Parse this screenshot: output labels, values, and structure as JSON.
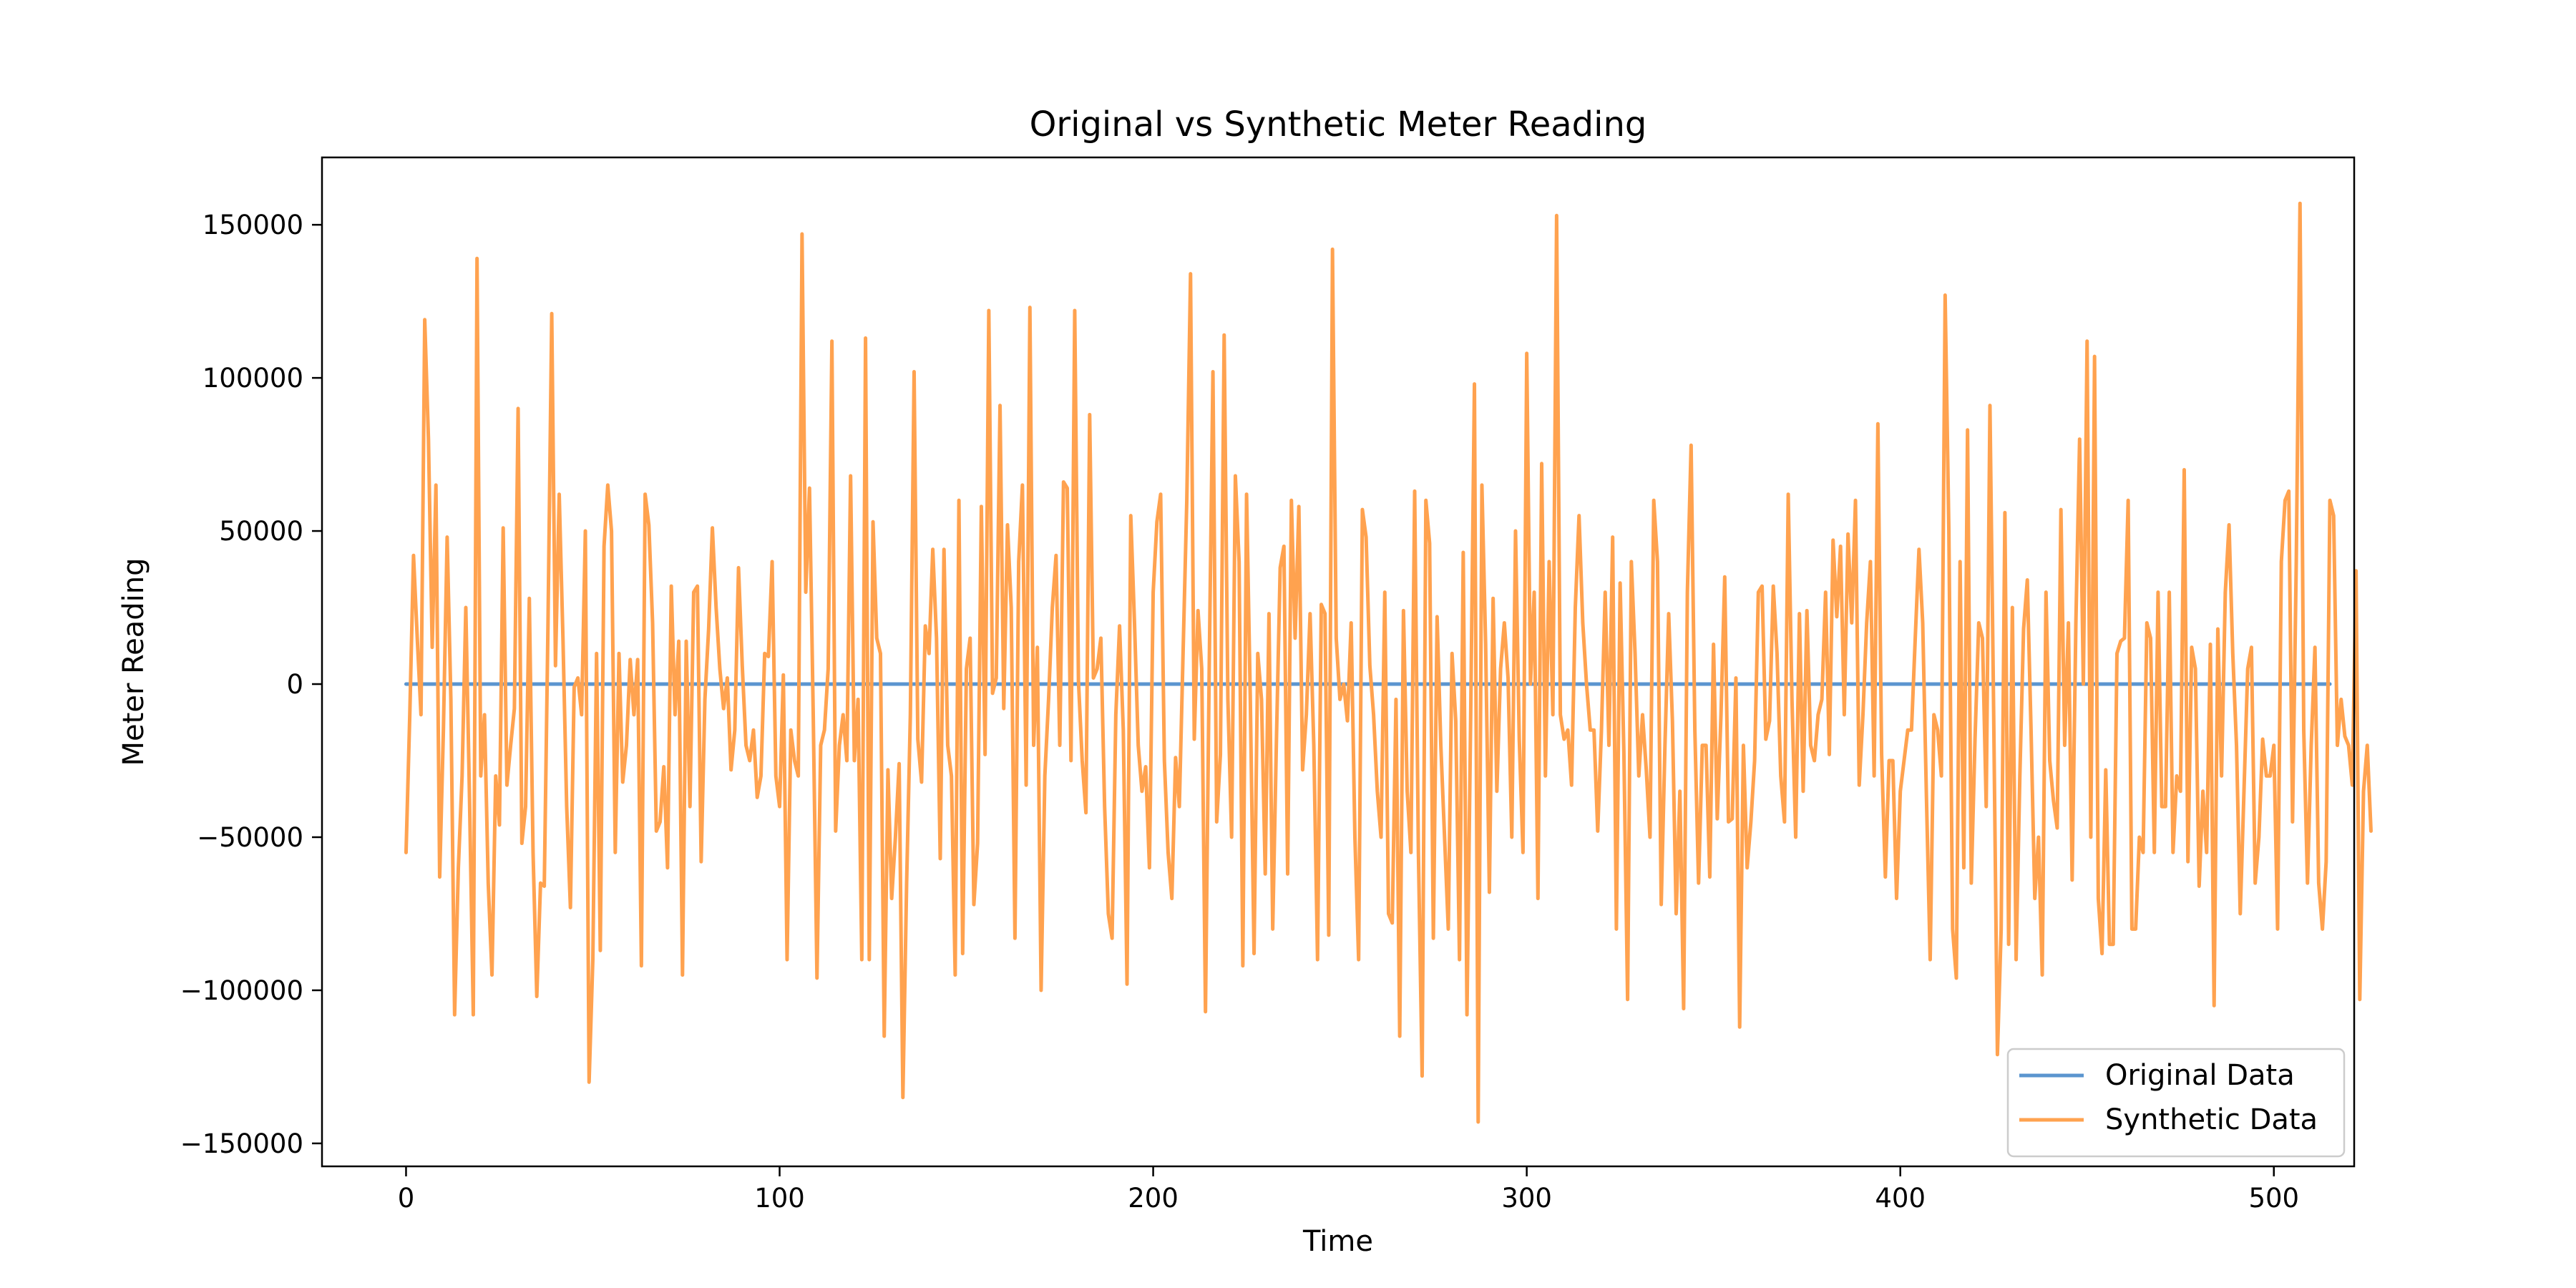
{
  "chart_data": {
    "type": "line",
    "title": "Original vs Synthetic Meter Reading",
    "xlabel": "Time",
    "ylabel": "Meter Reading",
    "xlim": [
      -22.5,
      521.5
    ],
    "ylim": [
      -157500,
      172000
    ],
    "x_ticks": [
      0,
      100,
      200,
      300,
      400,
      500
    ],
    "x_tick_labels": [
      "0",
      "100",
      "200",
      "300",
      "400",
      "500"
    ],
    "y_ticks": [
      -150000,
      -100000,
      -50000,
      0,
      50000,
      100000,
      150000
    ],
    "y_tick_labels": [
      "−150000",
      "−100000",
      "−50000",
      "0",
      "50000",
      "100000",
      "150000"
    ],
    "grid": false,
    "legend_position": "bottom-right",
    "series": [
      {
        "name": "Original Data",
        "color": "#5b95cf",
        "x_start": 0,
        "x_step": 1,
        "values": [
          0,
          0,
          0,
          0,
          0,
          0,
          0,
          0,
          0,
          0,
          0,
          0,
          0,
          0,
          0,
          0,
          0,
          0,
          0,
          0,
          0,
          0,
          0,
          0,
          0,
          0,
          0,
          0,
          0,
          0,
          0,
          0,
          0,
          0,
          0,
          0,
          0,
          0,
          0,
          0,
          0,
          0,
          0,
          0,
          0,
          0,
          0,
          0,
          0,
          0,
          0,
          0,
          0,
          0,
          0,
          0,
          0,
          0,
          0,
          0,
          0,
          0,
          0,
          0,
          0,
          0,
          0,
          0,
          0,
          0,
          0,
          0,
          0,
          0,
          0,
          0,
          0,
          0,
          0,
          0,
          0,
          0,
          0,
          0,
          0,
          0,
          0,
          0,
          0,
          0,
          0,
          0,
          0,
          0,
          0,
          0,
          0,
          0,
          0,
          0,
          0,
          0,
          0,
          0,
          0,
          0,
          0,
          0,
          0,
          0,
          0,
          0,
          0,
          0,
          0,
          0,
          0,
          0,
          0,
          0,
          0,
          0,
          0,
          0,
          0,
          0,
          0,
          0,
          0,
          0,
          0,
          0,
          0,
          0,
          0,
          0,
          0,
          0,
          0,
          0,
          0,
          0,
          0,
          0,
          0,
          0,
          0,
          0,
          0,
          0,
          0,
          0,
          0,
          0,
          0,
          0,
          0,
          0,
          0,
          0,
          0,
          0,
          0,
          0,
          0,
          0,
          0,
          0,
          0,
          0,
          0,
          0,
          0,
          0,
          0,
          0,
          0,
          0,
          0,
          0,
          0,
          0,
          0,
          0,
          0,
          0,
          0,
          0,
          0,
          0,
          0,
          0,
          0,
          0,
          0,
          0,
          0,
          0,
          0,
          0,
          0,
          0,
          0,
          0,
          0,
          0,
          0,
          0,
          0,
          0,
          0,
          0,
          0,
          0,
          0,
          0,
          0,
          0,
          0,
          0,
          0,
          0,
          0,
          0,
          0,
          0,
          0,
          0,
          0,
          0,
          0,
          0,
          0,
          0,
          0,
          0,
          0,
          0,
          0,
          0,
          0,
          0,
          0,
          0,
          0,
          0,
          0,
          0,
          0,
          0,
          0,
          0,
          0,
          0,
          0,
          0,
          0,
          0,
          0,
          0,
          0,
          0,
          0,
          0,
          0,
          0,
          0,
          0,
          0,
          0,
          0,
          0,
          0,
          0,
          0,
          0,
          0,
          0,
          0,
          0,
          0,
          0,
          0,
          0,
          0,
          0,
          0,
          0,
          0,
          0,
          0,
          0,
          0,
          0,
          0,
          0,
          0,
          0,
          0,
          0,
          0,
          0,
          0,
          0,
          0,
          0,
          0,
          0,
          0,
          0,
          0,
          0,
          0,
          0,
          0,
          0,
          0,
          0,
          0,
          0,
          0,
          0,
          0,
          0,
          0,
          0,
          0,
          0,
          0,
          0,
          0,
          0,
          0,
          0,
          0,
          0,
          0,
          0,
          0,
          0,
          0,
          0,
          0,
          0,
          0,
          0,
          0,
          0,
          0,
          0,
          0,
          0,
          0,
          0,
          0,
          0,
          0,
          0,
          0,
          0,
          0,
          0,
          0,
          0,
          0,
          0,
          0,
          0,
          0,
          0,
          0,
          0,
          0,
          0,
          0,
          0,
          0,
          0,
          0,
          0,
          0,
          0,
          0,
          0,
          0,
          0,
          0,
          0,
          0,
          0,
          0,
          0,
          0,
          0,
          0,
          0,
          0,
          0,
          0,
          0,
          0,
          0,
          0,
          0,
          0,
          0,
          0,
          0,
          0,
          0,
          0,
          0,
          0,
          0,
          0,
          0,
          0,
          0,
          0,
          0,
          0,
          0,
          0,
          0,
          0,
          0,
          0,
          0,
          0,
          0,
          0,
          0,
          0,
          0,
          0,
          0,
          0,
          0,
          0,
          0,
          0,
          0,
          0,
          0,
          0,
          0,
          0,
          0,
          0,
          0,
          0,
          0,
          0,
          0,
          0,
          0,
          0,
          0,
          0,
          0,
          0,
          0,
          0,
          0,
          0,
          0,
          0,
          0,
          0,
          0,
          0,
          0,
          0,
          0,
          0,
          0,
          0,
          0,
          0,
          0,
          0,
          0,
          0,
          0,
          0,
          0,
          0,
          0,
          0,
          0,
          0,
          0,
          0,
          0,
          0,
          0,
          0,
          0,
          0,
          0,
          0,
          0,
          0,
          0,
          0,
          0,
          0,
          0,
          0,
          0,
          0,
          0,
          0,
          0,
          0,
          0
        ]
      },
      {
        "name": "Synthetic Data",
        "color": "#ffa24f",
        "x_start": 0,
        "x_step": 1,
        "values": [
          -55000,
          -10000,
          42000,
          15000,
          -10000,
          119000,
          80000,
          12000,
          65000,
          -63000,
          -15000,
          48000,
          -5000,
          -108000,
          -60000,
          -30000,
          25000,
          -38000,
          -108000,
          139000,
          -30000,
          -10000,
          -65000,
          -95000,
          -30000,
          -46000,
          51000,
          -33000,
          -20000,
          -8000,
          90000,
          -52000,
          -40000,
          28000,
          -55000,
          -102000,
          -65000,
          -66000,
          20000,
          121000,
          6000,
          62000,
          15000,
          -40000,
          -73000,
          -1000,
          2000,
          -10000,
          50000,
          -130000,
          -90000,
          10000,
          -87000,
          45000,
          65000,
          50000,
          -55000,
          10000,
          -32000,
          -20000,
          8000,
          -10000,
          8000,
          -92000,
          62000,
          52000,
          20000,
          -48000,
          -45000,
          -27000,
          -60000,
          32000,
          -10000,
          14000,
          -95000,
          14000,
          -40000,
          30000,
          32000,
          -58000,
          -5000,
          18000,
          51000,
          25000,
          5000,
          -8000,
          2000,
          -28000,
          -15000,
          38000,
          6000,
          -20000,
          -25000,
          -15000,
          -37000,
          -30000,
          10000,
          9000,
          40000,
          -30000,
          -40000,
          3000,
          -90000,
          -15000,
          -25000,
          -30000,
          147000,
          30000,
          64000,
          -10000,
          -96000,
          -20000,
          -15000,
          5000,
          112000,
          -48000,
          -20000,
          -10000,
          -25000,
          68000,
          -25000,
          -5000,
          -90000,
          113000,
          -90000,
          53000,
          15000,
          10000,
          -115000,
          -28000,
          -70000,
          -50000,
          -26000,
          -135000,
          -65000,
          -10000,
          102000,
          -18000,
          -32000,
          19000,
          10000,
          44000,
          15000,
          -57000,
          44000,
          -20000,
          -30000,
          -95000,
          60000,
          -88000,
          5000,
          15000,
          -72000,
          -52000,
          58000,
          -23000,
          122000,
          -3000,
          2000,
          91000,
          -8000,
          52000,
          25000,
          -83000,
          40000,
          65000,
          -33000,
          123000,
          -20000,
          12000,
          -100000,
          -30000,
          -5000,
          25000,
          42000,
          -20000,
          66000,
          64000,
          -25000,
          122000,
          1000,
          -25000,
          -42000,
          88000,
          2000,
          5000,
          15000,
          -40000,
          -75000,
          -83000,
          -10000,
          19000,
          -15000,
          -98000,
          55000,
          20000,
          -20000,
          -35000,
          -27000,
          -60000,
          30000,
          53000,
          62000,
          -25000,
          -55000,
          -70000,
          -24000,
          -40000,
          10000,
          60000,
          134000,
          -18000,
          24000,
          5000,
          -107000,
          5000,
          102000,
          -45000,
          -23000,
          114000,
          -5000,
          -50000,
          68000,
          40000,
          -92000,
          62000,
          -5000,
          -88000,
          10000,
          -5000,
          -62000,
          23000,
          -80000,
          -18000,
          38000,
          45000,
          -62000,
          60000,
          15000,
          58000,
          -28000,
          -10000,
          23000,
          -20000,
          -90000,
          26000,
          23000,
          -82000,
          142000,
          15000,
          -5000,
          0,
          -12000,
          20000,
          -50000,
          -90000,
          57000,
          48000,
          6000,
          -10000,
          -35000,
          -50000,
          30000,
          -75000,
          -78000,
          -5000,
          -115000,
          24000,
          -35000,
          -55000,
          63000,
          -55000,
          -128000,
          60000,
          46000,
          -83000,
          22000,
          -20000,
          -50000,
          -80000,
          10000,
          -12000,
          -90000,
          43000,
          -108000,
          -10000,
          98000,
          -143000,
          65000,
          13000,
          -68000,
          28000,
          -35000,
          5000,
          20000,
          2000,
          -50000,
          50000,
          -18000,
          -55000,
          108000,
          0,
          30000,
          -70000,
          72000,
          -30000,
          40000,
          -10000,
          153000,
          -10000,
          -18000,
          -15000,
          -33000,
          25000,
          55000,
          20000,
          0,
          -15000,
          -15000,
          -48000,
          -15000,
          30000,
          -20000,
          48000,
          -80000,
          33000,
          -22000,
          -103000,
          40000,
          10000,
          -30000,
          -10000,
          -28000,
          -50000,
          60000,
          40000,
          -72000,
          -20000,
          23000,
          -12000,
          -75000,
          -35000,
          -106000,
          30000,
          78000,
          -15000,
          -65000,
          -20000,
          -20000,
          -63000,
          13000,
          -44000,
          -10000,
          35000,
          -45000,
          -44000,
          2000,
          -112000,
          -20000,
          -60000,
          -45000,
          -25000,
          30000,
          32000,
          -18000,
          -12000,
          32000,
          10000,
          -30000,
          -45000,
          62000,
          -5000,
          -50000,
          23000,
          -35000,
          24000,
          -20000,
          -25000,
          -10000,
          -5000,
          30000,
          -23000,
          47000,
          22000,
          45000,
          -10000,
          49000,
          20000,
          60000,
          -33000,
          -10000,
          20000,
          40000,
          -30000,
          85000,
          -23000,
          -63000,
          -25000,
          -25000,
          -70000,
          -35000,
          -25000,
          -15000,
          -15000,
          15000,
          44000,
          20000,
          -37000,
          -90000,
          -10000,
          -15000,
          -30000,
          127000,
          50000,
          -80000,
          -96000,
          40000,
          -60000,
          83000,
          -65000,
          -18000,
          20000,
          15000,
          -40000,
          91000,
          -10000,
          -121000,
          -80000,
          56000,
          -85000,
          25000,
          -90000,
          -30000,
          18000,
          34000,
          -15000,
          -70000,
          -50000,
          -95000,
          30000,
          -25000,
          -38000,
          -47000,
          57000,
          -20000,
          20000,
          -64000,
          20000,
          80000,
          0,
          112000,
          -50000,
          107000,
          -70000,
          -88000,
          -28000,
          -85000,
          -85000,
          10000,
          14000,
          15000,
          60000,
          -80000,
          -80000,
          -50000,
          -55000,
          20000,
          15000,
          -55000,
          30000,
          -40000,
          -40000,
          30000,
          -55000,
          -30000,
          -35000,
          70000,
          -58000,
          12000,
          5000,
          -66000,
          -35000,
          -55000,
          13000,
          -105000,
          18000,
          -30000,
          30000,
          52000,
          10000,
          -20000,
          -75000,
          -35000,
          5000,
          12000,
          -65000,
          -50000,
          -18000,
          -30000,
          -30000,
          -20000,
          -80000,
          40000,
          60000,
          63000,
          -45000,
          40000,
          157000,
          -15000,
          -65000,
          -20000,
          12000,
          -65000,
          -80000,
          -58000,
          60000,
          55000,
          -20000,
          -5000,
          -17000,
          -20000,
          -33000,
          37000,
          -103000,
          -35000,
          -20000,
          -48000
        ]
      }
    ]
  }
}
